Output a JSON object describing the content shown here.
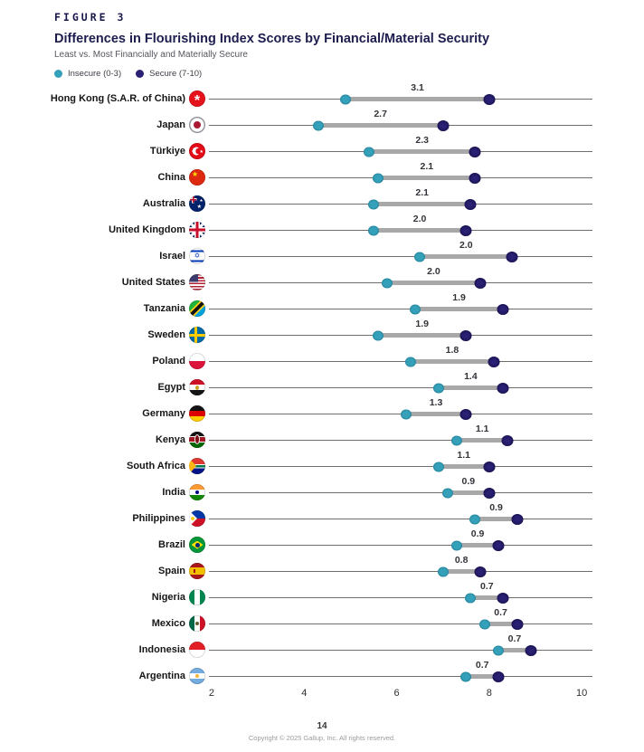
{
  "figure_label": "FIGURE 3",
  "title": "Differences in Flourishing Index Scores by Financial/Material Security",
  "subtitle": "Least vs. Most Financially and Materially Secure",
  "legend": [
    {
      "label": "Insecure (0-3)",
      "color": "#35a0b9"
    },
    {
      "label": "Secure (7-10)",
      "color": "#2a2074"
    }
  ],
  "colors": {
    "insecure": "#35a0b9",
    "secure": "#2a2074",
    "connector_bar": "#a8a8a8",
    "title_text": "#1d1d4f"
  },
  "chart_data": {
    "type": "dumbbell",
    "xlim": [
      2,
      10
    ],
    "x_ticks": [
      "2",
      "4",
      "6",
      "8",
      "10"
    ],
    "grid": false,
    "legend_position": "top-left",
    "series": [
      {
        "name": "Insecure (0-3)"
      },
      {
        "name": "Secure (7-10)"
      }
    ],
    "rows": [
      {
        "country": "Hong Kong (S.A.R. of China)",
        "flag": "hong-kong",
        "insecure": 4.9,
        "secure": 8.0,
        "difference": "3.1"
      },
      {
        "country": "Japan",
        "flag": "japan",
        "insecure": 4.3,
        "secure": 7.0,
        "difference": "2.7"
      },
      {
        "country": "Türkiye",
        "flag": "turkiye",
        "insecure": 5.4,
        "secure": 7.7,
        "difference": "2.3"
      },
      {
        "country": "China",
        "flag": "china",
        "insecure": 5.6,
        "secure": 7.7,
        "difference": "2.1"
      },
      {
        "country": "Australia",
        "flag": "australia",
        "insecure": 5.5,
        "secure": 7.6,
        "difference": "2.1"
      },
      {
        "country": "United Kingdom",
        "flag": "united-kingdom",
        "insecure": 5.5,
        "secure": 7.5,
        "difference": "2.0"
      },
      {
        "country": "Israel",
        "flag": "israel",
        "insecure": 6.5,
        "secure": 8.5,
        "difference": "2.0"
      },
      {
        "country": "United States",
        "flag": "united-states",
        "insecure": 5.8,
        "secure": 7.8,
        "difference": "2.0"
      },
      {
        "country": "Tanzania",
        "flag": "tanzania",
        "insecure": 6.4,
        "secure": 8.3,
        "difference": "1.9"
      },
      {
        "country": "Sweden",
        "flag": "sweden",
        "insecure": 5.6,
        "secure": 7.5,
        "difference": "1.9"
      },
      {
        "country": "Poland",
        "flag": "poland",
        "insecure": 6.3,
        "secure": 8.1,
        "difference": "1.8"
      },
      {
        "country": "Egypt",
        "flag": "egypt",
        "insecure": 6.9,
        "secure": 8.3,
        "difference": "1.4"
      },
      {
        "country": "Germany",
        "flag": "germany",
        "insecure": 6.2,
        "secure": 7.5,
        "difference": "1.3"
      },
      {
        "country": "Kenya",
        "flag": "kenya",
        "insecure": 7.3,
        "secure": 8.4,
        "difference": "1.1"
      },
      {
        "country": "South Africa",
        "flag": "south-africa",
        "insecure": 6.9,
        "secure": 8.0,
        "difference": "1.1"
      },
      {
        "country": "India",
        "flag": "india",
        "insecure": 7.1,
        "secure": 8.0,
        "difference": "0.9"
      },
      {
        "country": "Philippines",
        "flag": "philippines",
        "insecure": 7.7,
        "secure": 8.6,
        "difference": "0.9"
      },
      {
        "country": "Brazil",
        "flag": "brazil",
        "insecure": 7.3,
        "secure": 8.2,
        "difference": "0.9"
      },
      {
        "country": "Spain",
        "flag": "spain",
        "insecure": 7.0,
        "secure": 7.8,
        "difference": "0.8"
      },
      {
        "country": "Nigeria",
        "flag": "nigeria",
        "insecure": 7.6,
        "secure": 8.3,
        "difference": "0.7"
      },
      {
        "country": "Mexico",
        "flag": "mexico",
        "insecure": 7.9,
        "secure": 8.6,
        "difference": "0.7"
      },
      {
        "country": "Indonesia",
        "flag": "indonesia",
        "insecure": 8.2,
        "secure": 8.9,
        "difference": "0.7"
      },
      {
        "country": "Argentina",
        "flag": "argentina",
        "insecure": 7.5,
        "secure": 8.2,
        "difference": "0.7"
      }
    ]
  },
  "footer": {
    "page_number": "14",
    "copyright": "Copyright © 2025 Gallup, Inc. All rights reserved."
  }
}
